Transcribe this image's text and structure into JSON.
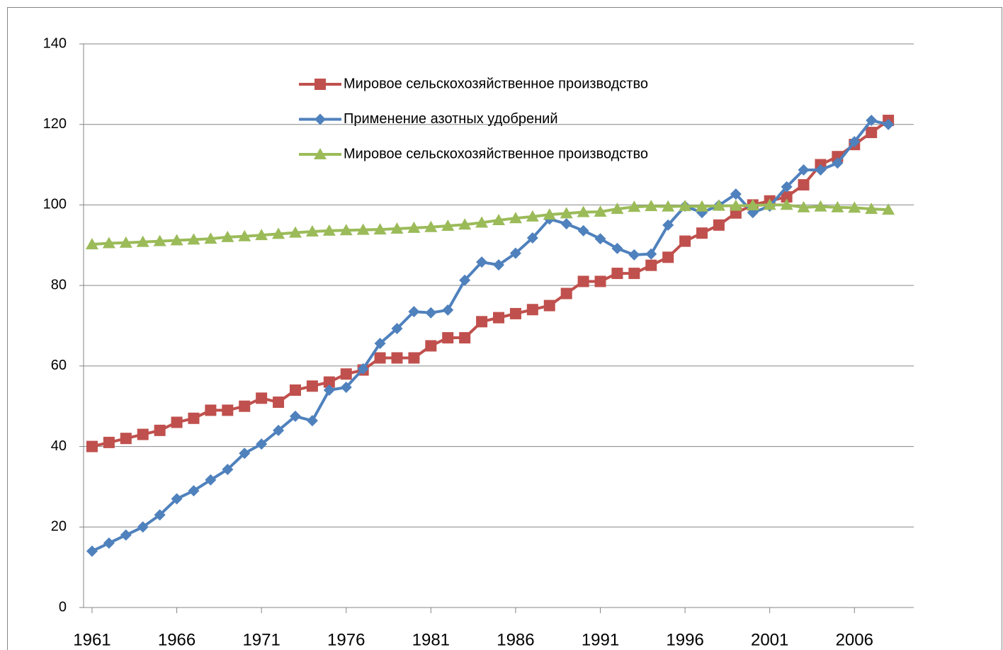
{
  "chart_data": {
    "type": "line",
    "x": [
      1961,
      1962,
      1963,
      1964,
      1965,
      1966,
      1967,
      1968,
      1969,
      1970,
      1971,
      1972,
      1973,
      1974,
      1975,
      1976,
      1977,
      1978,
      1979,
      1980,
      1981,
      1982,
      1983,
      1984,
      1985,
      1986,
      1987,
      1988,
      1989,
      1990,
      1991,
      1992,
      1993,
      1994,
      1995,
      1996,
      1997,
      1998,
      1999,
      2000,
      2001,
      2002,
      2003,
      2004,
      2005,
      2006,
      2007,
      2008
    ],
    "xlim": [
      1960.5,
      2009.5
    ],
    "xticks": [
      1961,
      1966,
      1971,
      1976,
      1981,
      1986,
      1991,
      1996,
      2001,
      2006
    ],
    "ylim": [
      0,
      140
    ],
    "yticks": [
      0,
      20,
      40,
      60,
      80,
      100,
      120,
      140
    ],
    "grid": true,
    "legend": "top",
    "series": [
      {
        "name": "Мировое сельскохозяйственное производство",
        "color": "#c0504d",
        "marker": "square",
        "values": [
          40,
          41,
          42,
          43,
          44,
          46,
          47,
          49,
          49,
          50,
          52,
          51,
          54,
          55,
          56,
          58,
          59,
          62,
          62,
          62,
          65,
          67,
          67,
          71,
          72,
          73,
          74,
          75,
          78,
          81,
          81,
          83,
          83,
          85,
          87,
          91,
          93,
          95,
          98,
          100,
          101,
          102,
          105,
          110,
          112,
          115,
          118,
          121
        ]
      },
      {
        "name": "Применение азотных удобрений",
        "color": "#4f81bd",
        "marker": "diamond",
        "values": [
          14,
          16,
          18,
          20,
          23,
          27,
          29,
          31.7,
          34.3,
          38.3,
          40.6,
          44,
          47.5,
          46.4,
          54,
          54.7,
          59.3,
          65.6,
          69.3,
          73.5,
          73.2,
          73.9,
          81.3,
          85.8,
          85.1,
          88,
          91.8,
          96.5,
          95.3,
          93.6,
          91.6,
          89.2,
          87.6,
          87.8,
          95,
          99.7,
          98.1,
          99.9,
          102.7,
          98.1,
          99.7,
          104.5,
          108.7,
          108.7,
          110.4,
          115.7,
          121,
          120
        ]
      },
      {
        "name": "Мировое сельскохозяйственное производство",
        "color": "#9bbb59",
        "marker": "triangle",
        "values": [
          90.2,
          90.5,
          90.6,
          90.8,
          91,
          91.2,
          91.4,
          91.6,
          92,
          92.2,
          92.5,
          92.8,
          93.1,
          93.4,
          93.6,
          93.7,
          93.8,
          93.9,
          94.1,
          94.3,
          94.5,
          94.8,
          95.1,
          95.6,
          96.2,
          96.7,
          97.1,
          97.6,
          97.9,
          98.2,
          98.3,
          99,
          99.5,
          99.7,
          99.6,
          99.7,
          99.6,
          99.8,
          99.8,
          99.9,
          100,
          100,
          99.4,
          99.6,
          99.4,
          99.3,
          99,
          98.8
        ]
      }
    ]
  }
}
